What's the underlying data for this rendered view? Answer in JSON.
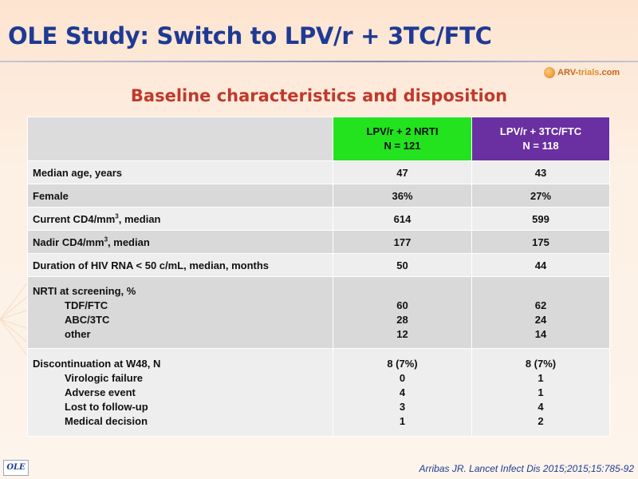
{
  "title": "OLE Study: Switch to LPV/r + 3TC/FTC",
  "logo": {
    "prefix": "ARV-",
    "name": "trials",
    "suffix": ".com"
  },
  "subtitle": "Baseline characteristics and disposition",
  "table": {
    "columns": [
      {
        "line1": "LPV/r + 2 NRTI",
        "line2": "N = 121",
        "color": "#22e31e"
      },
      {
        "line1": "LPV/r + 3TC/FTC",
        "line2": "N = 118",
        "color": "#6a2fa0"
      }
    ],
    "rows": {
      "age": {
        "label": "Median age, years",
        "v1": "47",
        "v2": "43"
      },
      "female": {
        "label": "Female",
        "v1": "36%",
        "v2": "27%"
      },
      "cd4_current": {
        "label_pre": "Current CD4/mm",
        "sup": "3",
        "label_post": ", median",
        "v1": "614",
        "v2": "599"
      },
      "cd4_nadir": {
        "label_pre": "Nadir CD4/mm",
        "sup": "3",
        "label_post": ", median",
        "v1": "177",
        "v2": "175"
      },
      "duration": {
        "label": "Duration of HIV RNA < 50 c/mL, median, months",
        "v1": "50",
        "v2": "44"
      },
      "nrti": {
        "label": "NRTI at screening, %",
        "items": [
          {
            "label": "TDF/FTC",
            "v1": "60",
            "v2": "62"
          },
          {
            "label": "ABC/3TC",
            "v1": "28",
            "v2": "24"
          },
          {
            "label": "other",
            "v1": "12",
            "v2": "14"
          }
        ]
      },
      "discontinuation": {
        "label": "Discontinuation at W48, N",
        "v1": "8 (7%)",
        "v2": "8 (7%)",
        "items": [
          {
            "label": "Virologic failure",
            "v1": "0",
            "v2": "1"
          },
          {
            "label": "Adverse event",
            "v1": "4",
            "v2": "1"
          },
          {
            "label": "Lost to follow-up",
            "v1": "3",
            "v2": "4"
          },
          {
            "label": "Medical decision",
            "v1": "1",
            "v2": "2"
          }
        ]
      }
    }
  },
  "badge": "OLE",
  "citation": "Arribas JR. Lancet Infect Dis 2015;2015;15:785-92"
}
